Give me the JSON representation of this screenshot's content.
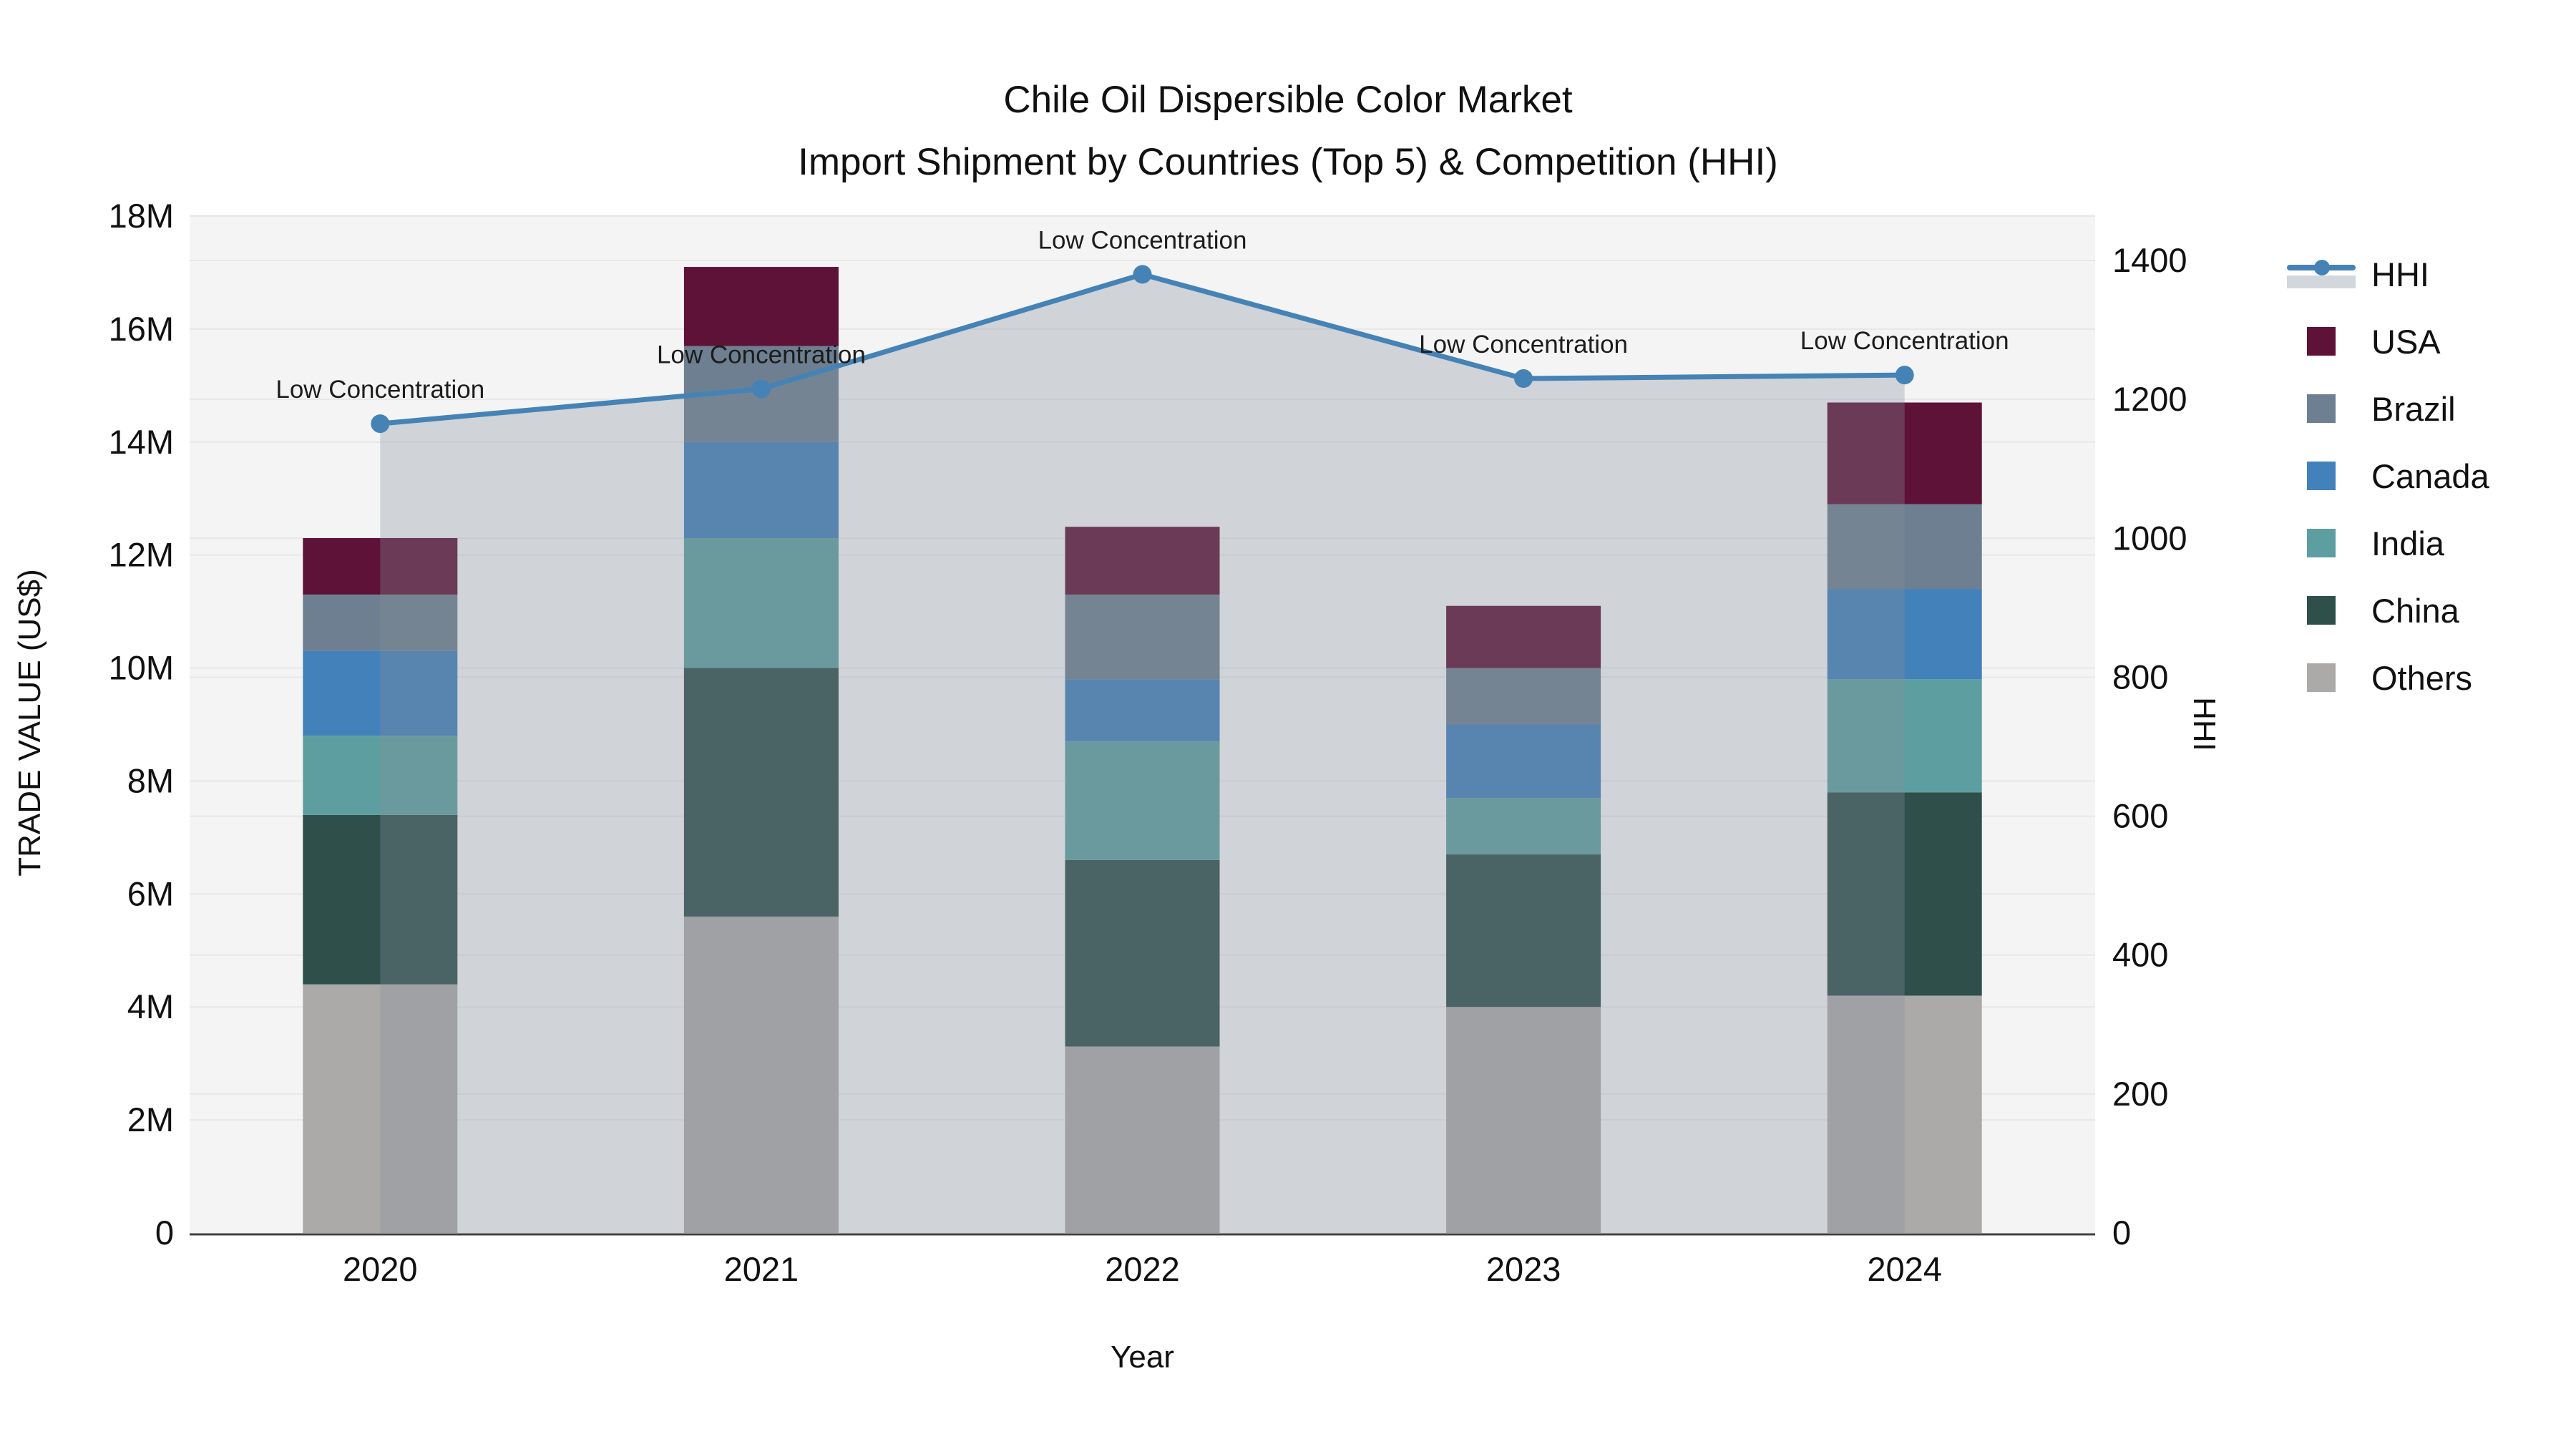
{
  "page": {
    "background": "#ffffff",
    "plot_background": "#f4f4f4",
    "grid_color": "#e7e7e7",
    "axis_line_color": "#3f3f3f"
  },
  "chart_data": {
    "type": "bar+line",
    "title": "Chile Oil Dispersible Color Market",
    "subtitle": "Import Shipment by Countries (Top 5) & Competition (HHI)",
    "x_axis": {
      "title": "Year",
      "categories": [
        "2020",
        "2021",
        "2022",
        "2023",
        "2024"
      ]
    },
    "y_left": {
      "title": "TRADE VALUE (US$)",
      "unit": "US$ millions",
      "range": [
        0,
        18.03
      ],
      "ticks": [
        0,
        2,
        4,
        6,
        8,
        10,
        12,
        14,
        16,
        18
      ],
      "tick_labels": [
        "0",
        "2M",
        "4M",
        "6M",
        "8M",
        "10M",
        "12M",
        "14M",
        "16M",
        "18M"
      ]
    },
    "y_right": {
      "title": "HHI",
      "range": [
        0,
        1466
      ],
      "ticks": [
        0,
        200,
        400,
        600,
        800,
        1000,
        1200,
        1400
      ],
      "tick_labels": [
        "0",
        "200",
        "400",
        "600",
        "800",
        "1000",
        "1200",
        "1400"
      ]
    },
    "series": [
      {
        "name": "USA",
        "color": "#5e1237",
        "values": [
          1.0,
          1.4,
          1.2,
          1.1,
          1.8
        ]
      },
      {
        "name": "Brazil",
        "color": "#6d7f90",
        "values": [
          1.0,
          1.7,
          1.5,
          1.0,
          1.5
        ]
      },
      {
        "name": "Canada",
        "color": "#4381ba",
        "values": [
          1.5,
          1.7,
          1.1,
          1.3,
          1.6
        ]
      },
      {
        "name": "India",
        "color": "#5d9fa0",
        "values": [
          1.4,
          2.3,
          2.1,
          1.0,
          2.0
        ]
      },
      {
        "name": "China",
        "color": "#2e4f4a",
        "values": [
          3.0,
          4.4,
          3.3,
          2.7,
          3.6
        ]
      },
      {
        "name": "Others",
        "color": "#abaaa8",
        "values": [
          4.4,
          5.6,
          3.3,
          4.0,
          4.2
        ]
      }
    ],
    "stack_order_bottom_to_top": [
      "Others",
      "China",
      "India",
      "Canada",
      "Brazil",
      "USA"
    ],
    "bar_totals": [
      12.3,
      17.1,
      12.5,
      11.1,
      14.7
    ],
    "hhi": {
      "name": "HHI",
      "color": "#4583b6",
      "fill_color": "rgba(133,142,155,0.32)",
      "fill_sample_color": "#d2d7de",
      "values": [
        1165,
        1215,
        1380,
        1230,
        1235
      ]
    },
    "annotations": {
      "text": "Low Concentration",
      "on_points": [
        "2020",
        "2021",
        "2022",
        "2023",
        "2024"
      ]
    },
    "legend": {
      "position": "right",
      "entries": [
        "HHI",
        "USA",
        "Brazil",
        "Canada",
        "India",
        "China",
        "Others"
      ]
    }
  }
}
